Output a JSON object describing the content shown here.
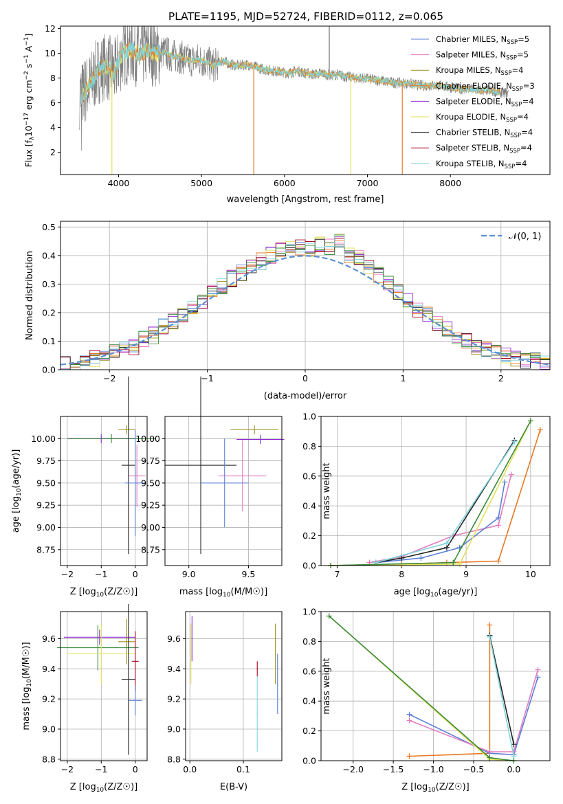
{
  "title": "PLATE=1195, MJD=52724, FIBERID=0112, z=0.065",
  "colors": {
    "chabrier_miles": "#5b7fd6",
    "salpeter_miles": "#e37bc0",
    "kroupa_miles": "#9a8d1a",
    "chabrier_elodie": "#e87722",
    "salpeter_elodie": "#8e2ad6",
    "kroupa_elodie": "#e2e05a",
    "chabrier_stelib": "#222222",
    "salpeter_stelib": "#a8001c",
    "kroupa_stelib": "#7fd4dc",
    "data": "#808080",
    "normal": "#5b8fd6",
    "green": "#3a8a3a"
  },
  "legend_labels": [
    "Chabrier MILES, N",
    "Salpeter MILES, N",
    "Kroupa MILES, N",
    "Chabrier ELODIE, N",
    "Salpeter ELODIE, N",
    "Kroupa ELODIE, N",
    "Chabrier STELIB, N",
    "Salpeter STELIB, N",
    "Kroupa STELIB, N"
  ],
  "legend_sub": "SSP",
  "legend_nssp": [
    "=5",
    "=5",
    "=4",
    "=3",
    "=4",
    "=4",
    "=4",
    "=4",
    "=4"
  ],
  "normal_label": "𝒩(0, 1)",
  "chart_data": [
    {
      "type": "line",
      "name": "spectrum",
      "xlabel": "wavelength [Angstrom, rest frame]",
      "ylabel": "Flux [f",
      "ylabel_parts": [
        "Flux [f",
        "λ",
        "10",
        "−17",
        " erg cm",
        "−2",
        " s",
        "−1",
        " A",
        "−1",
        "]"
      ],
      "xlim": [
        3300,
        9200
      ],
      "ylim": [
        0.2,
        12.2
      ],
      "xticks": [
        4000,
        5000,
        6000,
        7000,
        8000
      ],
      "yticks": [
        2,
        4,
        6,
        8,
        10,
        12
      ],
      "continuum": {
        "x": [
          3550,
          3650,
          3750,
          3850,
          3950,
          4050,
          4150,
          4250,
          4350,
          4450,
          4550,
          4650,
          4750,
          4850,
          4950,
          5050,
          5150,
          5250,
          5350,
          5450,
          5550,
          5650,
          5750,
          5850,
          5950,
          6050,
          6150,
          6250,
          6350,
          6450,
          6550,
          6650,
          6750,
          6850,
          6950,
          7050,
          7150,
          7250,
          7350,
          7450,
          7550,
          7650,
          7750,
          7850,
          7950,
          8050,
          8150,
          8250,
          8350,
          8450,
          8550,
          8650
        ],
        "y": [
          6.6,
          7.4,
          8.6,
          9.0,
          8.4,
          10.0,
          10.3,
          9.9,
          10.2,
          10.0,
          10.1,
          9.8,
          9.7,
          9.4,
          9.5,
          9.3,
          9.0,
          9.4,
          9.1,
          9.0,
          9.1,
          8.9,
          8.7,
          8.6,
          8.5,
          8.4,
          8.6,
          8.4,
          8.3,
          8.4,
          8.2,
          8.3,
          8.1,
          8.0,
          8.0,
          7.9,
          7.8,
          7.7,
          7.6,
          7.6,
          7.5,
          7.4,
          7.4,
          7.4,
          7.3,
          7.2,
          7.1,
          7.1,
          7.0,
          7.0,
          6.9,
          6.8
        ]
      },
      "spikes": [
        [
          3920,
          0.2
        ],
        [
          5630,
          0.2
        ],
        [
          6800,
          0.2
        ],
        [
          7420,
          0.2
        ]
      ],
      "sky_line": [
        6540,
        12.2
      ]
    },
    {
      "type": "step",
      "name": "residuals",
      "xlabel": "(data-model)/error",
      "ylabel": "Normed distribution",
      "xlim": [
        -2.5,
        2.5
      ],
      "ylim": [
        0.0,
        0.52
      ],
      "xticks": [
        -2,
        -1,
        0,
        1,
        2
      ],
      "yticks": [
        0.0,
        0.1,
        0.2,
        0.3,
        0.4,
        0.5
      ],
      "bin_width": 0.1,
      "x": [
        -2.5,
        -2.4,
        -2.3,
        -2.2,
        -2.1,
        -2.0,
        -1.9,
        -1.8,
        -1.7,
        -1.6,
        -1.5,
        -1.4,
        -1.3,
        -1.2,
        -1.1,
        -1.0,
        -0.9,
        -0.8,
        -0.7,
        -0.6,
        -0.5,
        -0.4,
        -0.3,
        -0.2,
        -0.1,
        0.0,
        0.1,
        0.2,
        0.3,
        0.4,
        0.5,
        0.6,
        0.7,
        0.8,
        0.9,
        1.0,
        1.1,
        1.2,
        1.3,
        1.4,
        1.5,
        1.6,
        1.7,
        1.8,
        1.9,
        2.0,
        2.1,
        2.2,
        2.3,
        2.4
      ],
      "y": [
        0.02,
        0.02,
        0.03,
        0.04,
        0.05,
        0.06,
        0.08,
        0.08,
        0.11,
        0.12,
        0.15,
        0.17,
        0.19,
        0.22,
        0.24,
        0.27,
        0.29,
        0.32,
        0.34,
        0.36,
        0.38,
        0.4,
        0.42,
        0.44,
        0.43,
        0.42,
        0.44,
        0.43,
        0.45,
        0.4,
        0.39,
        0.36,
        0.33,
        0.3,
        0.27,
        0.24,
        0.21,
        0.19,
        0.16,
        0.14,
        0.12,
        0.1,
        0.08,
        0.07,
        0.06,
        0.05,
        0.04,
        0.03,
        0.03,
        0.03
      ]
    },
    {
      "type": "errorbar",
      "name": "age-vs-Z",
      "xlabel": "Z [log",
      "ylabel": "age  [log",
      "xlim": [
        -2.2,
        0.35
      ],
      "ylim": [
        8.57,
        10.25
      ],
      "xticks": [
        -2,
        -1,
        0
      ],
      "yticks": [
        8.75,
        9.0,
        9.25,
        9.5,
        9.75,
        10.0
      ],
      "points": [
        {
          "x": -0.25,
          "y": 10.1,
          "xerr": 0.25,
          "yerr": 0.05,
          "color": "kroupa_miles"
        },
        {
          "x": -1.0,
          "y": 10.0,
          "xerr": 1.0,
          "yerr": 0.05,
          "color": "salpeter_elodie"
        },
        {
          "x": -0.7,
          "y": 10.0,
          "xerr": 1.3,
          "yerr": 0.05,
          "color": "green"
        },
        {
          "x": 0.05,
          "y": 9.58,
          "xerr": 0.25,
          "yerr": 0.35,
          "color": "salpeter_miles"
        },
        {
          "x": -0.2,
          "y": 9.7,
          "xerr": 0.2,
          "yerr": 1.0,
          "color": "chabrier_stelib"
        },
        {
          "x": 0.0,
          "y": 9.5,
          "xerr": 0.3,
          "yerr": 0.6,
          "color": "chabrier_miles"
        }
      ]
    },
    {
      "type": "errorbar",
      "name": "age-vs-mass",
      "xlabel": "mass [log",
      "ylabel": "",
      "xlim": [
        8.8,
        9.78
      ],
      "ylim": [
        8.57,
        10.25
      ],
      "xticks": [
        9.0,
        9.5
      ],
      "yticks": [
        8.75,
        9.0,
        9.25,
        9.5,
        9.75,
        10.0
      ],
      "points": [
        {
          "x": 9.55,
          "y": 10.1,
          "xerr": 0.2,
          "yerr": 0.05,
          "color": "kroupa_miles"
        },
        {
          "x": 9.6,
          "y": 9.99,
          "xerr": 0.2,
          "yerr": 0.05,
          "color": "salpeter_elodie"
        },
        {
          "x": 9.1,
          "y": 9.7,
          "xerr": 0.3,
          "yerr": 1.0,
          "color": "chabrier_stelib"
        },
        {
          "x": 9.45,
          "y": 9.58,
          "xerr": 0.2,
          "yerr": 0.4,
          "color": "salpeter_miles"
        },
        {
          "x": 9.3,
          "y": 9.5,
          "xerr": 0.2,
          "yerr": 0.5,
          "color": "chabrier_miles"
        }
      ]
    },
    {
      "type": "line",
      "name": "weight-vs-age",
      "xlabel": "age  [log",
      "ylabel": "mass weight",
      "xlim": [
        6.75,
        10.3
      ],
      "ylim": [
        0.0,
        1.0
      ],
      "xticks": [
        7,
        8,
        9,
        10
      ],
      "yticks": [
        0.0,
        0.2,
        0.4,
        0.6,
        0.8,
        1.0
      ],
      "series": [
        {
          "color": "chabrier_elodie",
          "x": [
            6.9,
            8.0,
            8.7,
            9.5,
            10.15
          ],
          "y": [
            0.0,
            0.01,
            0.02,
            0.03,
            0.91
          ]
        },
        {
          "color": "salpeter_miles",
          "x": [
            7.5,
            8.0,
            8.8,
            9.5,
            9.7
          ],
          "y": [
            0.02,
            0.06,
            0.2,
            0.27,
            0.61
          ]
        },
        {
          "color": "chabrier_miles",
          "x": [
            7.6,
            8.3,
            8.9,
            9.5,
            9.6
          ],
          "y": [
            0.02,
            0.05,
            0.12,
            0.32,
            0.56
          ]
        },
        {
          "color": "kroupa_elodie",
          "x": [
            6.9,
            8.9,
            10.0
          ],
          "y": [
            0.0,
            0.01,
            0.97
          ]
        },
        {
          "color": "chabrier_stelib",
          "x": [
            7.6,
            8.0,
            8.7,
            9.75
          ],
          "y": [
            0.02,
            0.05,
            0.12,
            0.84
          ]
        },
        {
          "color": "kroupa_stelib",
          "x": [
            7.6,
            8.7,
            9.75
          ],
          "y": [
            0.02,
            0.15,
            0.83
          ]
        },
        {
          "color": "green",
          "x": [
            6.9,
            8.8,
            10.0
          ],
          "y": [
            0.0,
            0.02,
            0.97
          ]
        }
      ]
    },
    {
      "type": "errorbar",
      "name": "mass-vs-Z",
      "xlabel": "Z [log",
      "ylabel": "mass [log",
      "xlim": [
        -2.2,
        0.35
      ],
      "ylim": [
        8.79,
        9.78
      ],
      "xticks": [
        -2,
        -1,
        0
      ],
      "yticks": [
        8.8,
        9.0,
        9.2,
        9.4,
        9.6
      ],
      "points": [
        {
          "x": -1.05,
          "y": 9.61,
          "xerr": 1.05,
          "yerr": 0.05,
          "color": "salpeter_elodie"
        },
        {
          "x": -0.25,
          "y": 9.58,
          "xerr": 0.25,
          "yerr": 0.15,
          "color": "kroupa_miles"
        },
        {
          "x": -1.1,
          "y": 9.54,
          "xerr": 1.2,
          "yerr": 0.15,
          "color": "green"
        },
        {
          "x": -1.0,
          "y": 9.5,
          "xerr": 1.0,
          "yerr": 0.2,
          "color": "kroupa_elodie"
        },
        {
          "x": 0.0,
          "y": 9.45,
          "xerr": 0.1,
          "yerr": 0.2,
          "color": "salpeter_stelib"
        },
        {
          "x": -0.2,
          "y": 9.33,
          "xerr": 0.2,
          "yerr": 0.5,
          "color": "chabrier_stelib"
        },
        {
          "x": 0.0,
          "y": 9.19,
          "xerr": 0.2,
          "yerr": 0.1,
          "color": "chabrier_miles"
        }
      ]
    },
    {
      "type": "errorbar",
      "name": "mass-vs-ebv",
      "xlabel": "E(B-V)",
      "ylabel": "",
      "xlim": [
        -0.008,
        0.172
      ],
      "ylim": [
        8.79,
        9.78
      ],
      "xticks": [
        0.0,
        0.1
      ],
      "yticks": [
        8.8,
        9.0,
        9.2,
        9.4,
        9.6
      ],
      "points": [
        {
          "x": 0.002,
          "y": 9.5,
          "xerr": 0.001,
          "yerr": 0.2,
          "color": "kroupa_elodie"
        },
        {
          "x": 0.004,
          "y": 9.6,
          "xerr": 0.001,
          "yerr": 0.15,
          "color": "salpeter_elodie"
        },
        {
          "x": 0.126,
          "y": 9.1,
          "xerr": 0.001,
          "yerr": 0.25,
          "color": "kroupa_stelib"
        },
        {
          "x": 0.126,
          "y": 9.4,
          "xerr": 0.001,
          "yerr": 0.05,
          "color": "salpeter_stelib"
        },
        {
          "x": 0.16,
          "y": 9.5,
          "xerr": 0.001,
          "yerr": 0.2,
          "color": "kroupa_miles"
        },
        {
          "x": 0.164,
          "y": 9.3,
          "xerr": 0.001,
          "yerr": 0.2,
          "color": "chabrier_miles"
        }
      ]
    },
    {
      "type": "line",
      "name": "weight-vs-Z",
      "xlabel": "Z [log",
      "ylabel": "mass weight",
      "xlim": [
        -2.4,
        0.45
      ],
      "ylim": [
        0.0,
        1.0
      ],
      "xticks": [
        -2.0,
        -1.5,
        -1.0,
        -0.5,
        0.0
      ],
      "yticks": [
        0.0,
        0.2,
        0.4,
        0.6,
        0.8,
        1.0
      ],
      "series": [
        {
          "color": "chabrier_elodie",
          "x": [
            -1.3,
            -0.3,
            -0.3
          ],
          "y": [
            0.03,
            0.05,
            0.91
          ]
        },
        {
          "color": "chabrier_miles",
          "x": [
            -1.3,
            -0.3,
            0.0,
            0.3
          ],
          "y": [
            0.31,
            0.05,
            0.04,
            0.56
          ]
        },
        {
          "color": "salpeter_miles",
          "x": [
            -1.3,
            -0.3,
            0.0,
            0.3
          ],
          "y": [
            0.27,
            0.06,
            0.06,
            0.61
          ]
        },
        {
          "color": "kroupa_elodie",
          "x": [
            -2.3,
            -0.3,
            0.0
          ],
          "y": [
            0.97,
            0.01,
            0.0
          ]
        },
        {
          "color": "chabrier_stelib",
          "x": [
            -0.3,
            0.0
          ],
          "y": [
            0.84,
            0.11
          ]
        },
        {
          "color": "kroupa_stelib",
          "x": [
            -0.3,
            0.0
          ],
          "y": [
            0.83,
            0.03
          ]
        },
        {
          "color": "green",
          "x": [
            -2.3,
            -0.3,
            0.0
          ],
          "y": [
            0.97,
            0.02,
            0.0
          ]
        }
      ]
    }
  ]
}
